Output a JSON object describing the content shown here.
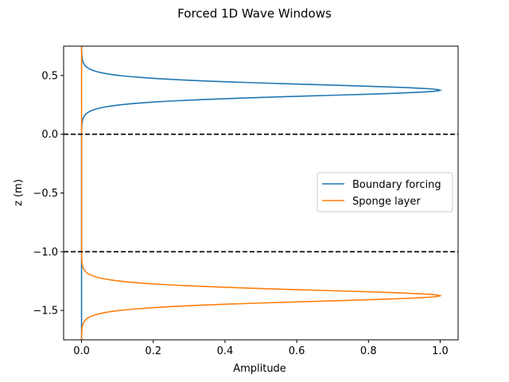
{
  "chart_data": {
    "type": "line",
    "title": "Forced 1D Wave Windows",
    "xlabel": "Amplitude",
    "ylabel": "z (m)",
    "xlim": [
      -0.05,
      1.05
    ],
    "ylim": [
      -1.75,
      0.75
    ],
    "xticks": [
      0.0,
      0.2,
      0.4,
      0.6,
      0.8,
      1.0
    ],
    "xtick_labels": [
      "0.0",
      "0.2",
      "0.4",
      "0.6",
      "0.8",
      "1.0"
    ],
    "yticks": [
      0.5,
      0.0,
      -0.5,
      -1.0,
      -1.5
    ],
    "ytick_labels": [
      "0.5",
      "0.0",
      "−0.5",
      "−1.0",
      "−1.5"
    ],
    "grid": false,
    "legend_position": "center-right",
    "series": [
      {
        "name": "Boundary forcing",
        "color": "#1f77b4",
        "peak_z": 0.375,
        "peak_amplitude": 1.0,
        "half_width": 0.07
      },
      {
        "name": "Sponge layer",
        "color": "#ff7f0e",
        "peak_z": -1.375,
        "peak_amplitude": 1.0,
        "half_width": 0.07
      }
    ],
    "reference_lines": [
      {
        "z": 0.0,
        "style": "dashed",
        "color": "#000000"
      },
      {
        "z": -1.0,
        "style": "dashed",
        "color": "#000000"
      }
    ]
  }
}
